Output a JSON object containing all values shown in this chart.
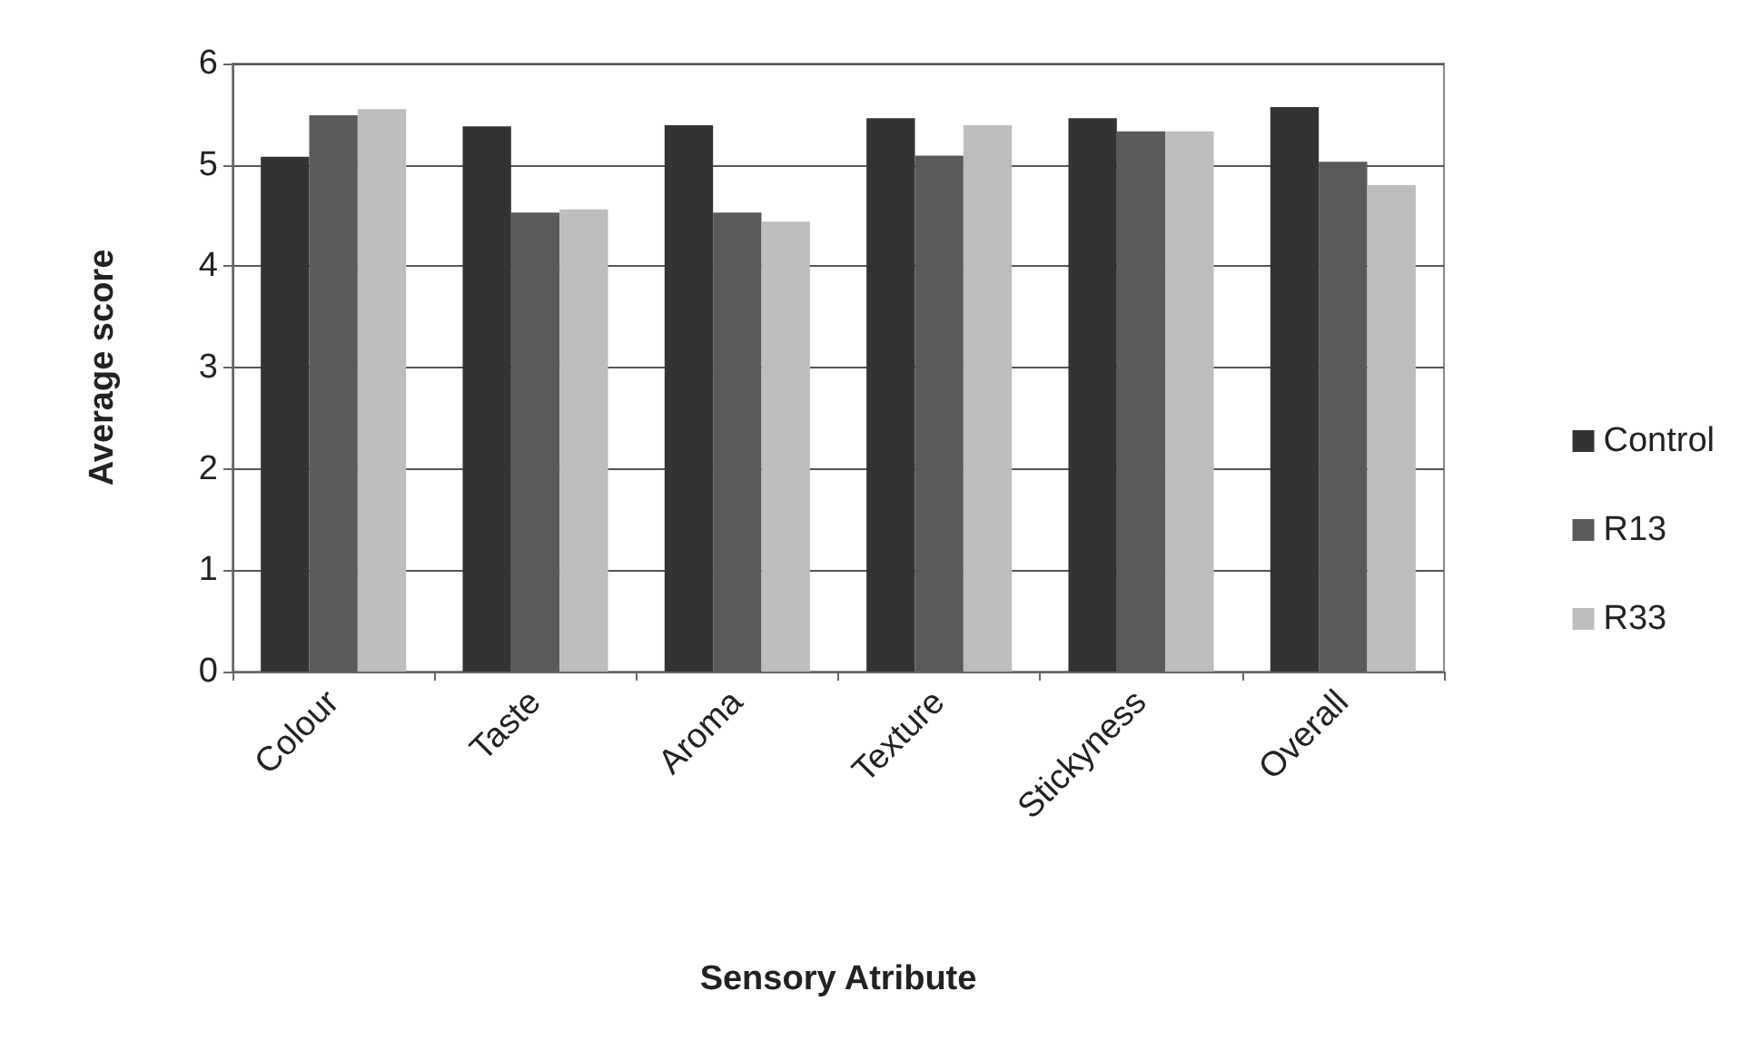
{
  "chart_data": {
    "type": "bar",
    "xlabel": "Sensory Atribute",
    "ylabel": "Average score",
    "categories": [
      "Colour",
      "Taste",
      "Aroma",
      "Texture",
      "Stickyness",
      "Overall"
    ],
    "series": [
      {
        "name": "Control",
        "color": "#333333",
        "values": [
          5.08,
          5.38,
          5.39,
          5.46,
          5.46,
          5.57
        ]
      },
      {
        "name": "R13",
        "color": "#5a5a5a",
        "values": [
          5.49,
          4.53,
          4.53,
          5.09,
          5.33,
          5.03
        ]
      },
      {
        "name": "R33",
        "color": "#bdbdbd",
        "values": [
          5.55,
          4.56,
          4.44,
          5.39,
          5.33,
          4.8
        ]
      }
    ],
    "ylim": [
      0,
      6
    ],
    "yticks": [
      0,
      1,
      2,
      3,
      4,
      5,
      6
    ],
    "grid": "y",
    "legend": "right"
  }
}
